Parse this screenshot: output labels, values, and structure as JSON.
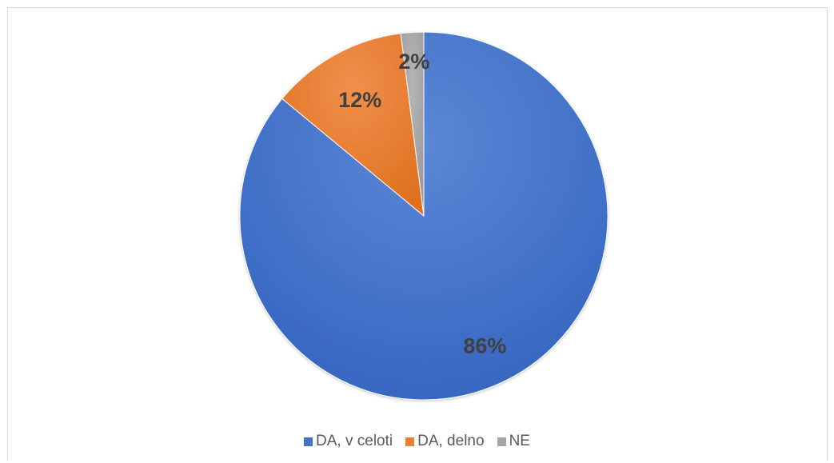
{
  "chart_data": {
    "type": "pie",
    "title": "",
    "categories": [
      "DA, v celoti",
      "DA, delno",
      "NE"
    ],
    "values": [
      86,
      12,
      2
    ],
    "data_labels": [
      "86%",
      "12%",
      "2%"
    ],
    "colors": [
      "#4472c4",
      "#ed7d31",
      "#a5a5a5"
    ],
    "legend_position": "bottom",
    "start_angle_deg": 0,
    "direction": "clockwise"
  }
}
